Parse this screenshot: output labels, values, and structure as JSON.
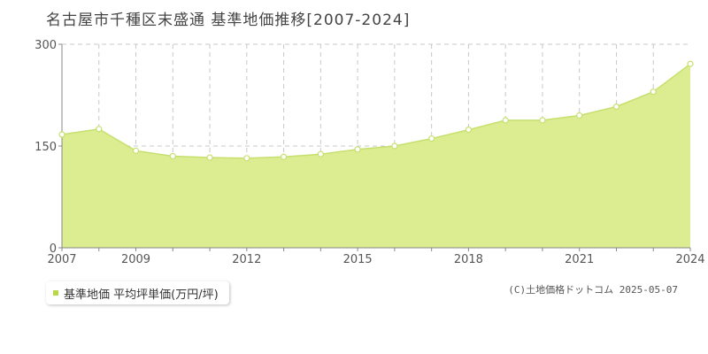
{
  "title": "名古屋市千種区末盛通 基準地価推移[2007-2024]",
  "legend": {
    "label": "基準地価 平均坪単価(万円/坪)"
  },
  "copyright": "(C)土地価格ドットコム 2025-05-07",
  "colors": {
    "fill": "#dcec90",
    "line": "#c6e070",
    "marker_fill": "#ffffff",
    "grid": "#c8c8c8",
    "axis": "#888888",
    "legend_swatch": "#b8d84a"
  },
  "chart_data": {
    "type": "area",
    "x": [
      2007,
      2008,
      2009,
      2010,
      2011,
      2012,
      2013,
      2014,
      2015,
      2016,
      2017,
      2018,
      2019,
      2020,
      2021,
      2022,
      2023,
      2024
    ],
    "series": [
      {
        "name": "基準地価 平均坪単価(万円/坪)",
        "values": [
          167,
          175,
          143,
          135,
          133,
          132,
          134,
          138,
          145,
          150,
          161,
          174,
          188,
          188,
          195,
          208,
          230,
          271
        ]
      }
    ],
    "ylim": [
      0,
      300
    ],
    "yticks": [
      "0",
      "150",
      "300"
    ],
    "xticks": [
      "2007",
      "2009",
      "2012",
      "2015",
      "2018",
      "2021",
      "2024"
    ],
    "grid": true
  }
}
